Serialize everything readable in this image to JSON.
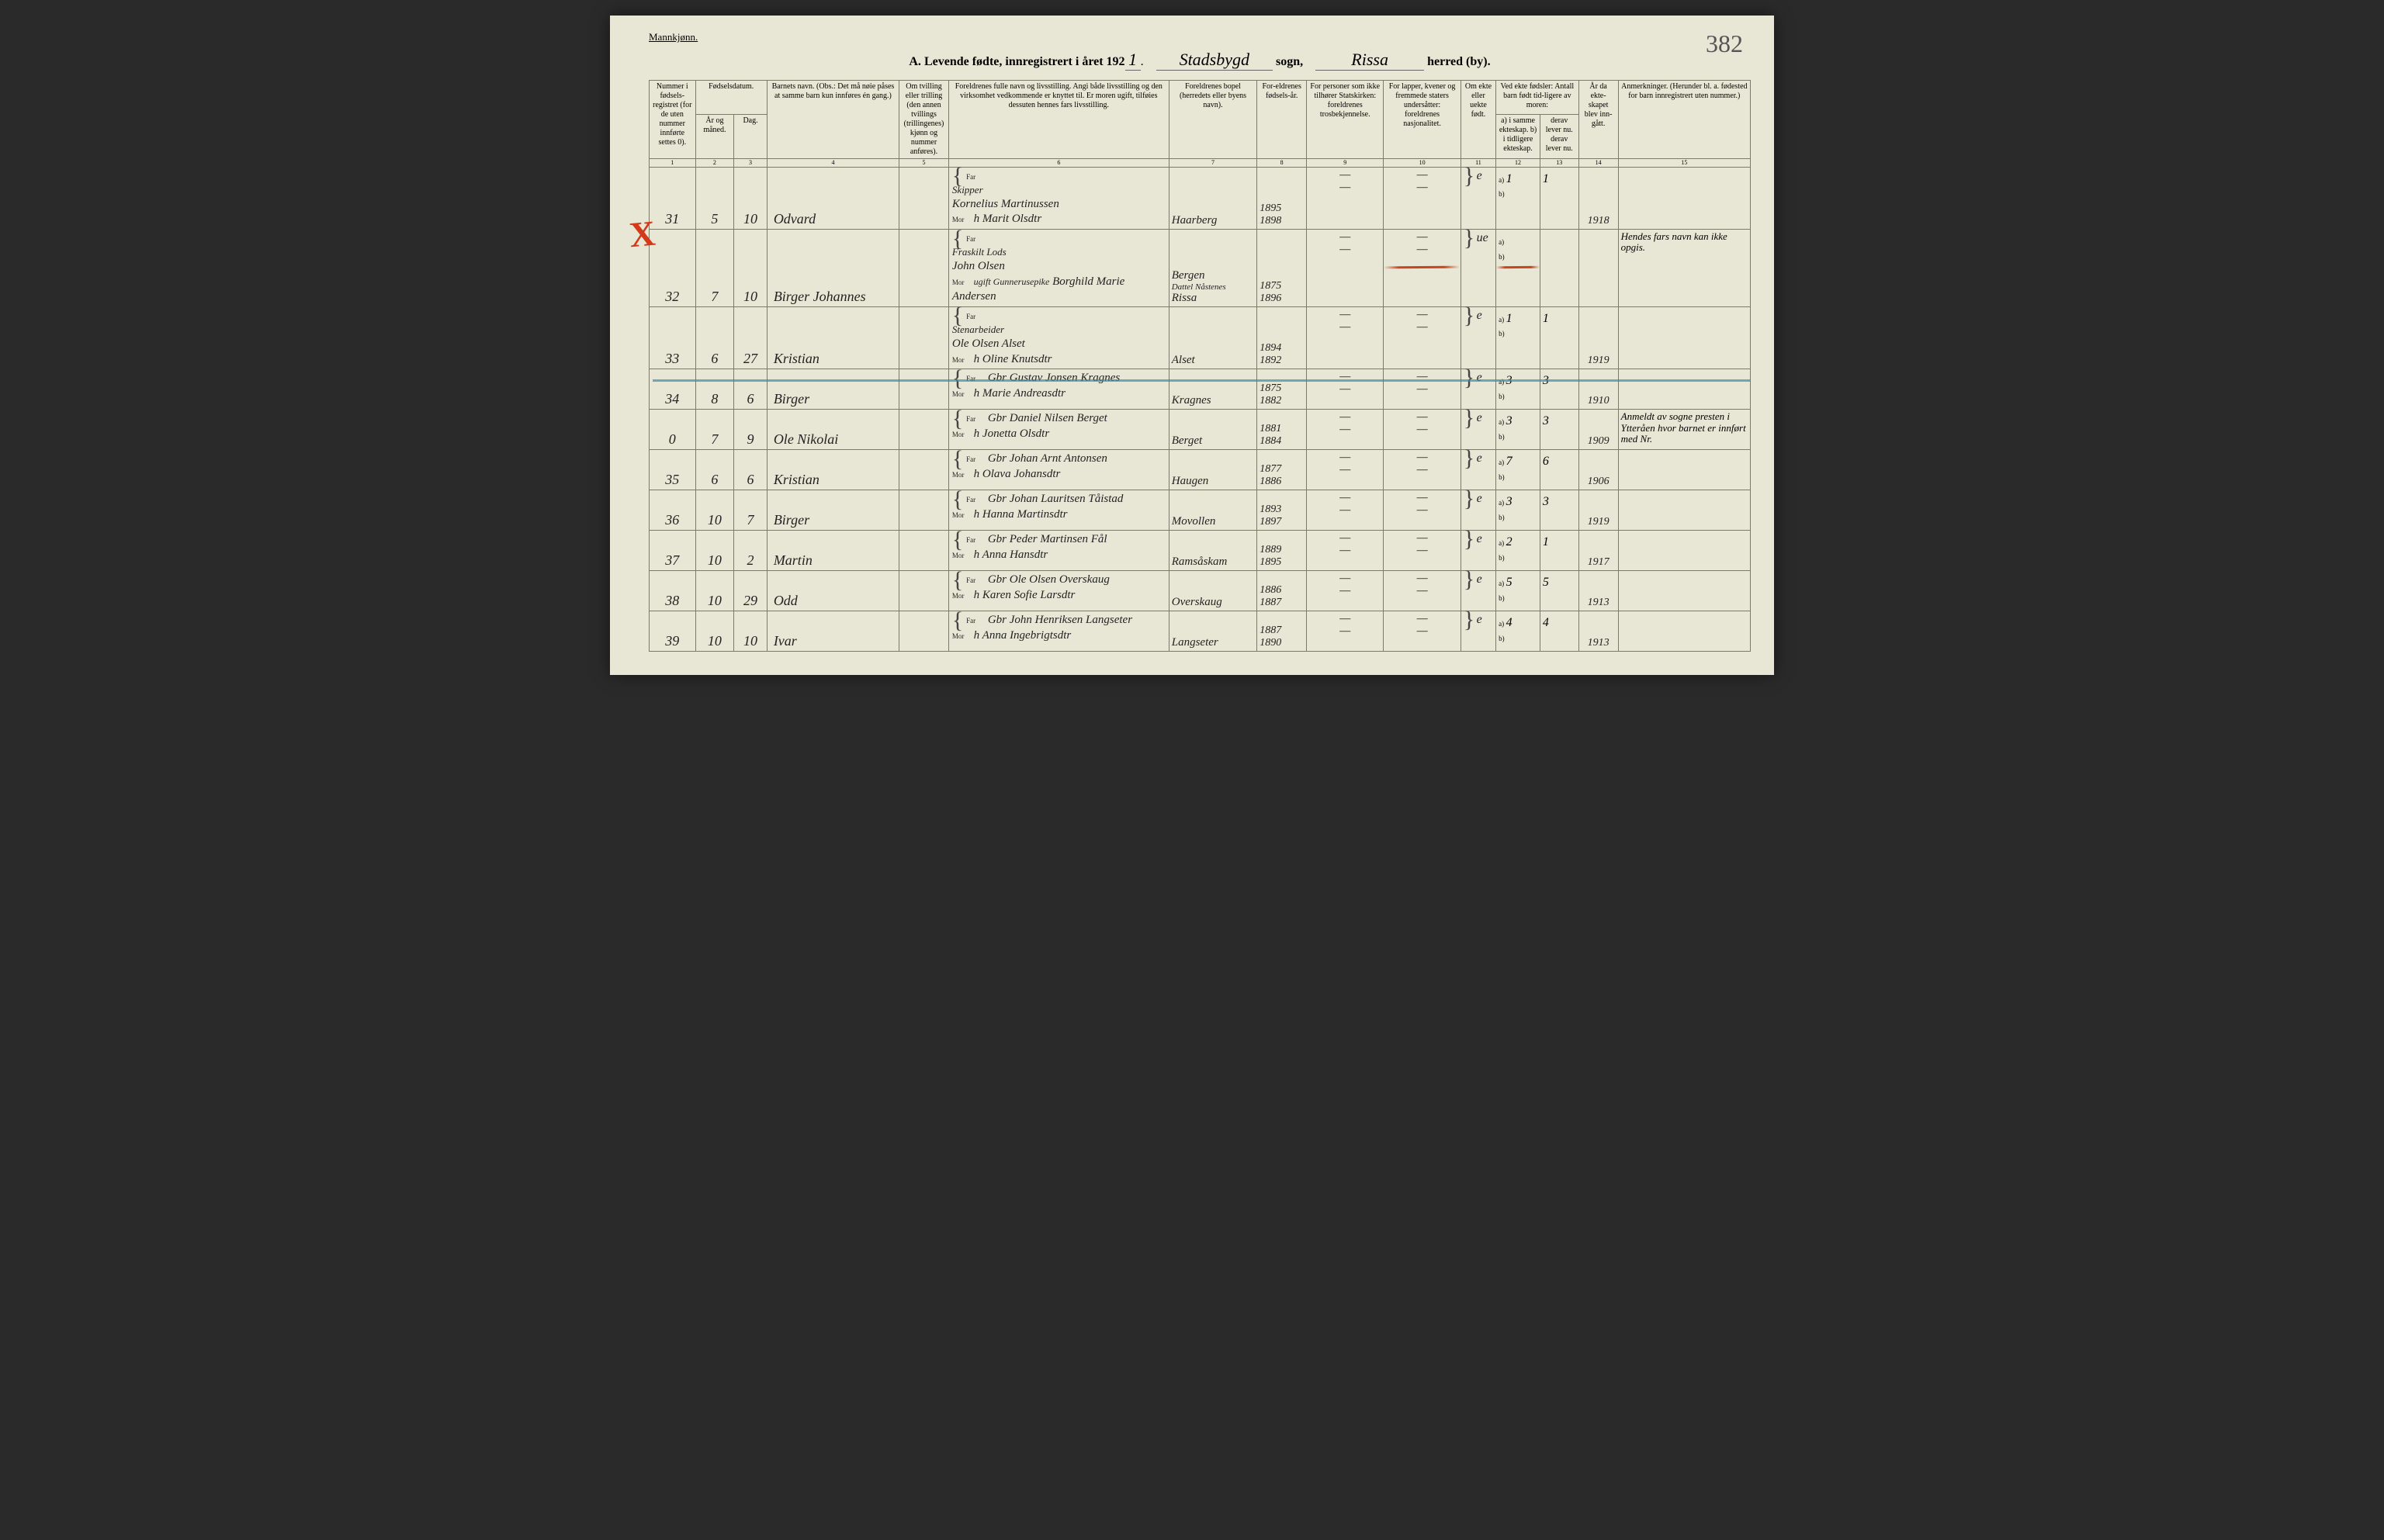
{
  "header": {
    "gender": "Mannkjønn.",
    "section": "A.",
    "title_prefix": "Levende fødte, innregistrert i året 192",
    "year_suffix": "1",
    "sogn_label": "sogn,",
    "sogn_value": "Stadsbygd",
    "herred_label": "herred (by).",
    "herred_value": "Rissa",
    "page_number": "382"
  },
  "columns": {
    "c1": "Nummer i fødsels-registret (for de uten nummer innførte settes 0).",
    "c2_3": "Fødselsdatum.",
    "c2": "År og måned.",
    "c3": "Dag.",
    "c4": "Barnets navn.\n(Obs.: Det må nøie påses at samme barn kun innføres én gang.)",
    "c5": "Om tvilling eller trilling (den annen tvillings (trillingenes) kjønn og nummer anføres).",
    "c6": "Foreldrenes fulle navn og livsstilling.\nAngi både livsstilling og den virksomhet vedkommende er knyttet til. Er moren ugift, tilføies dessuten hennes fars livsstilling.",
    "c7": "Foreldrenes bopel (herredets eller byens navn).",
    "c8": "For-eldrenes fødsels-år.",
    "c9": "For personer som ikke tilhører Statskirken: foreldrenes trosbekjennelse.",
    "c10": "For lapper, kvener og fremmede staters undersåtter: foreldrenes nasjonalitet.",
    "c11": "Om ekte eller uekte født.",
    "c12_13": "Ved ekte fødsler: Antall barn født tid-ligere av moren:",
    "c12": "a) i samme ekteskap.\nb) i tidligere ekteskap.",
    "c13": "derav lever nu.\nderav lever nu.",
    "c14": "År da ekte-skapet blev inn-gått.",
    "c15": "Anmerkninger.\n(Herunder bl. a. fødested for barn innregistrert uten nummer.)",
    "far": "Far",
    "mor": "Mor"
  },
  "col_nums": [
    "1",
    "2",
    "3",
    "4",
    "5",
    "6",
    "7",
    "8",
    "9",
    "10",
    "11",
    "12",
    "13",
    "14",
    "15"
  ],
  "rows": [
    {
      "num": "31",
      "month": "5",
      "day": "10",
      "name": "Odvard",
      "far_occ": "Skipper",
      "far": "Kornelius Martinussen",
      "mor": "h Marit Olsdtr",
      "bopel": "Haarberg",
      "far_yr": "1895",
      "mor_yr": "1898",
      "ekte": "e",
      "a": "1",
      "a_lev": "1",
      "marr_yr": "1918",
      "remarks": ""
    },
    {
      "num": "32",
      "month": "7",
      "day": "10",
      "name": "Birger Johannes",
      "far_occ": "Fraskilt Lods",
      "far": "John Olsen",
      "mor_occ": "ugift Gunnerusepike",
      "mor": "Borghild Marie Andersen",
      "bopel": "Bergen",
      "bopel2": "Rissa",
      "far_yr": "1875",
      "mor_yr": "1896",
      "ekte": "ue",
      "a": "",
      "a_lev": "",
      "marr_yr": "",
      "remarks": "Hendes fars navn kan ikke opgis.",
      "struck": true
    },
    {
      "num": "33",
      "month": "6",
      "day": "27",
      "name": "Kristian",
      "far_occ": "Stenarbeider",
      "far": "Ole Olsen Alset",
      "mor": "h Oline Knutsdtr",
      "bopel": "Alset",
      "far_yr": "1894",
      "mor_yr": "1892",
      "ekte": "e",
      "a": "1",
      "a_lev": "1",
      "marr_yr": "1919",
      "remarks": ""
    },
    {
      "num": "34",
      "month": "8",
      "day": "6",
      "name": "Birger",
      "far_occ": "",
      "far": "Gbr Gustav Jonsen Kragnes",
      "mor": "h Marie Andreasdtr",
      "bopel": "Kragnes",
      "far_yr": "1875",
      "mor_yr": "1882",
      "ekte": "e",
      "a": "3",
      "a_lev": "3",
      "marr_yr": "1910",
      "remarks": ""
    },
    {
      "num": "0",
      "month": "7",
      "day": "9",
      "name": "Ole Nikolai",
      "far_occ": "",
      "far": "Gbr Daniel Nilsen Berget",
      "mor": "h Jonetta Olsdtr",
      "bopel": "Berget",
      "far_yr": "1881",
      "mor_yr": "1884",
      "ekte": "e",
      "a": "3",
      "a_lev": "3",
      "marr_yr": "1909",
      "remarks": "Anmeldt av sogne presten i Ytteråen hvor barnet er innført med Nr."
    },
    {
      "num": "35",
      "month": "6",
      "day": "6",
      "name": "Kristian",
      "far_occ": "",
      "far": "Gbr Johan Arnt Antonsen",
      "mor": "h Olava Johansdtr",
      "bopel": "Haugen",
      "far_yr": "1877",
      "mor_yr": "1886",
      "ekte": "e",
      "a": "7",
      "a_lev": "6",
      "marr_yr": "1906",
      "remarks": ""
    },
    {
      "num": "36",
      "month": "10",
      "day": "7",
      "name": "Birger",
      "far_occ": "",
      "far": "Gbr Johan Lauritsen Tåistad",
      "mor": "h Hanna Martinsdtr",
      "bopel": "Movollen",
      "far_yr": "1893",
      "mor_yr": "1897",
      "ekte": "e",
      "a": "3",
      "a_lev": "3",
      "marr_yr": "1919",
      "remarks": ""
    },
    {
      "num": "37",
      "month": "10",
      "day": "2",
      "name": "Martin",
      "far_occ": "",
      "far": "Gbr Peder Martinsen Fål",
      "mor": "h Anna Hansdtr",
      "bopel": "Ramsåskam",
      "far_yr": "1889",
      "mor_yr": "1895",
      "ekte": "e",
      "a": "2",
      "a_lev": "1",
      "marr_yr": "1917",
      "remarks": ""
    },
    {
      "num": "38",
      "month": "10",
      "day": "29",
      "name": "Odd",
      "far_occ": "",
      "far": "Gbr Ole Olsen Overskaug",
      "mor": "h Karen Sofie Larsdtr",
      "bopel": "Overskaug",
      "far_yr": "1886",
      "mor_yr": "1887",
      "ekte": "e",
      "a": "5",
      "a_lev": "5",
      "marr_yr": "1913",
      "remarks": ""
    },
    {
      "num": "39",
      "month": "10",
      "day": "10",
      "name": "Ivar",
      "far_occ": "",
      "far": "Gbr John Henriksen Langseter",
      "mor": "h Anna Ingebrigtsdtr",
      "bopel": "Langseter",
      "far_yr": "1887",
      "mor_yr": "1890",
      "ekte": "e",
      "a": "4",
      "a_lev": "4",
      "marr_yr": "1913",
      "remarks": ""
    }
  ]
}
